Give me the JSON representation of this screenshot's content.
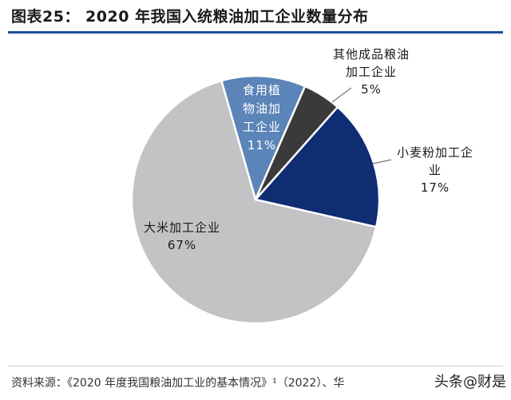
{
  "title": "图表25： 2020 年我国入统粮油加工企业数量分布",
  "chart_data": {
    "type": "pie",
    "title": "图表25： 2020 年我国入统粮油加工企业数量分布",
    "slices": [
      {
        "label": "食用植物油加工企业",
        "label_lines": [
          "食用植",
          "物油加",
          "工企业"
        ],
        "value": 11,
        "value_label": "11%",
        "color": "#5b84b8"
      },
      {
        "label": "其他成品粮油加工企业",
        "label_lines": [
          "其他成品粮油",
          "加工企业"
        ],
        "value": 5,
        "value_label": "5%",
        "color": "#3a3a3a"
      },
      {
        "label": "小麦粉加工企业",
        "label_lines": [
          "小麦粉加工企",
          "业"
        ],
        "value": 17,
        "value_label": "17%",
        "color": "#0f2d73"
      },
      {
        "label": "大米加工企业",
        "label_lines": [
          "大米加工企业"
        ],
        "value": 67,
        "value_label": "67%",
        "color": "#c3c3c5"
      }
    ]
  },
  "source": "资料来源：《2020 年度我国粮油加工业的基本情况》¹（2022）、华",
  "watermark": "头条@财是"
}
